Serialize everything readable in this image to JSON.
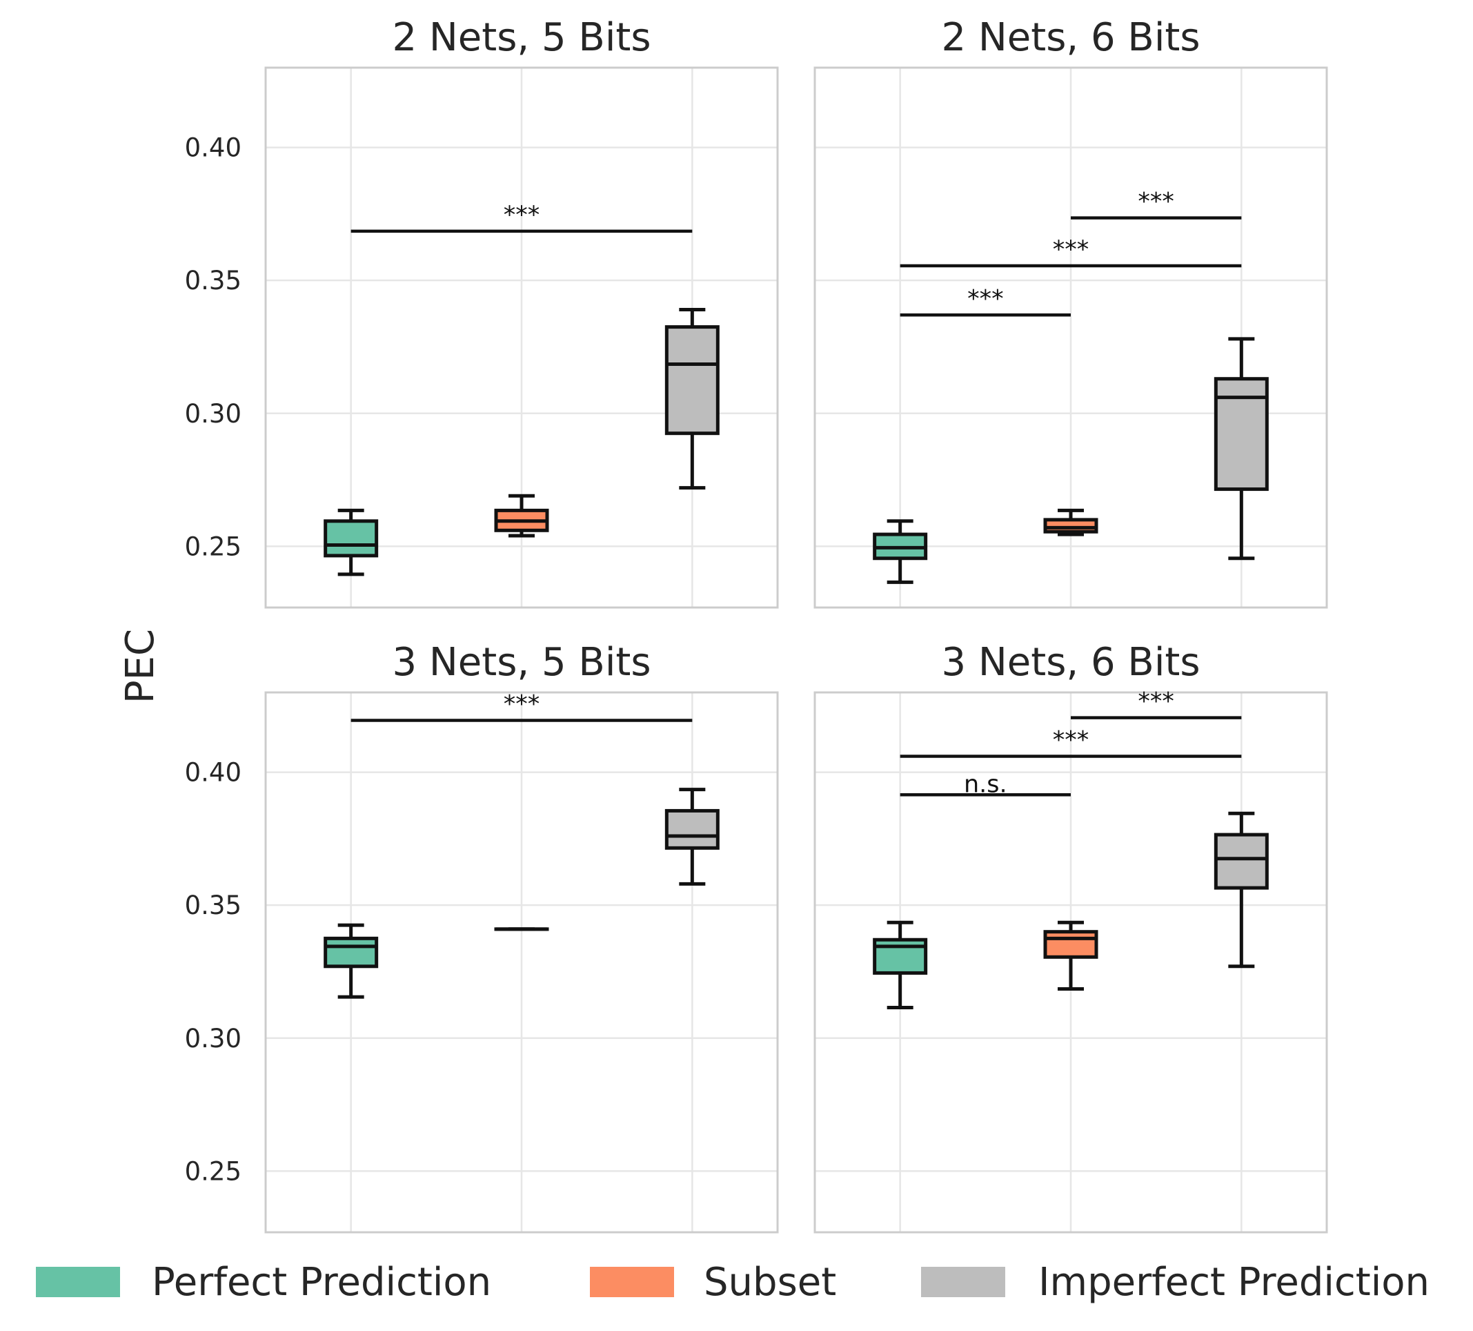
{
  "chart_data": {
    "type": "box",
    "ylabel": "PEC",
    "ylim": [
      0.227,
      0.43
    ],
    "yticks": [
      0.25,
      0.3,
      0.35,
      0.4
    ],
    "ytick_labels": [
      "0.25",
      "0.30",
      "0.35",
      "0.40"
    ],
    "grid": true,
    "legend_placement": "bottom",
    "series": [
      {
        "name": "Perfect Prediction",
        "color": "#66c2a5"
      },
      {
        "name": "Subset",
        "color": "#fc8d62"
      },
      {
        "name": "Imperfect Prediction",
        "color": "#bdbdbd"
      }
    ],
    "panels": [
      {
        "title": "2 Nets, 5 Bits",
        "boxes": [
          {
            "series": 0,
            "whisker_low": 0.2395,
            "q1": 0.2465,
            "median": 0.2505,
            "q3": 0.2595,
            "whisker_high": 0.2635
          },
          {
            "series": 1,
            "whisker_low": 0.254,
            "q1": 0.256,
            "median": 0.2595,
            "q3": 0.2635,
            "whisker_high": 0.269
          },
          {
            "series": 2,
            "whisker_low": 0.272,
            "q1": 0.2925,
            "median": 0.3185,
            "q3": 0.3325,
            "whisker_high": 0.339
          }
        ],
        "significance": [
          {
            "from": 0,
            "to": 2,
            "y": 0.3685,
            "label": "***"
          }
        ]
      },
      {
        "title": "2 Nets, 6 Bits",
        "boxes": [
          {
            "series": 0,
            "whisker_low": 0.2365,
            "q1": 0.2455,
            "median": 0.2495,
            "q3": 0.2545,
            "whisker_high": 0.2595
          },
          {
            "series": 1,
            "whisker_low": 0.2545,
            "q1": 0.2555,
            "median": 0.257,
            "q3": 0.26,
            "whisker_high": 0.2635
          },
          {
            "series": 2,
            "whisker_low": 0.2455,
            "q1": 0.2715,
            "median": 0.306,
            "q3": 0.313,
            "whisker_high": 0.328
          }
        ],
        "significance": [
          {
            "from": 0,
            "to": 1,
            "y": 0.337,
            "label": "***"
          },
          {
            "from": 0,
            "to": 2,
            "y": 0.3555,
            "label": "***"
          },
          {
            "from": 1,
            "to": 2,
            "y": 0.3735,
            "label": "***"
          }
        ]
      },
      {
        "title": "3 Nets, 5 Bits",
        "boxes": [
          {
            "series": 0,
            "whisker_low": 0.3155,
            "q1": 0.327,
            "median": 0.3345,
            "q3": 0.3375,
            "whisker_high": 0.3425
          },
          {
            "series": 1,
            "whisker_low": 0.341,
            "q1": 0.341,
            "median": 0.341,
            "q3": 0.341,
            "whisker_high": 0.341
          },
          {
            "series": 2,
            "whisker_low": 0.358,
            "q1": 0.3715,
            "median": 0.376,
            "q3": 0.3855,
            "whisker_high": 0.3935
          }
        ],
        "significance": [
          {
            "from": 0,
            "to": 2,
            "y": 0.4195,
            "label": "***"
          }
        ]
      },
      {
        "title": "3 Nets, 6 Bits",
        "boxes": [
          {
            "series": 0,
            "whisker_low": 0.3115,
            "q1": 0.3245,
            "median": 0.3345,
            "q3": 0.337,
            "whisker_high": 0.3435
          },
          {
            "series": 1,
            "whisker_low": 0.3185,
            "q1": 0.3305,
            "median": 0.3375,
            "q3": 0.34,
            "whisker_high": 0.3435
          },
          {
            "series": 2,
            "whisker_low": 0.327,
            "q1": 0.3565,
            "median": 0.3675,
            "q3": 0.3765,
            "whisker_high": 0.3845
          }
        ],
        "significance": [
          {
            "from": 0,
            "to": 1,
            "y": 0.3915,
            "label": "n.s."
          },
          {
            "from": 0,
            "to": 2,
            "y": 0.406,
            "label": "***"
          },
          {
            "from": 1,
            "to": 2,
            "y": 0.4205,
            "label": "***"
          }
        ]
      }
    ]
  }
}
